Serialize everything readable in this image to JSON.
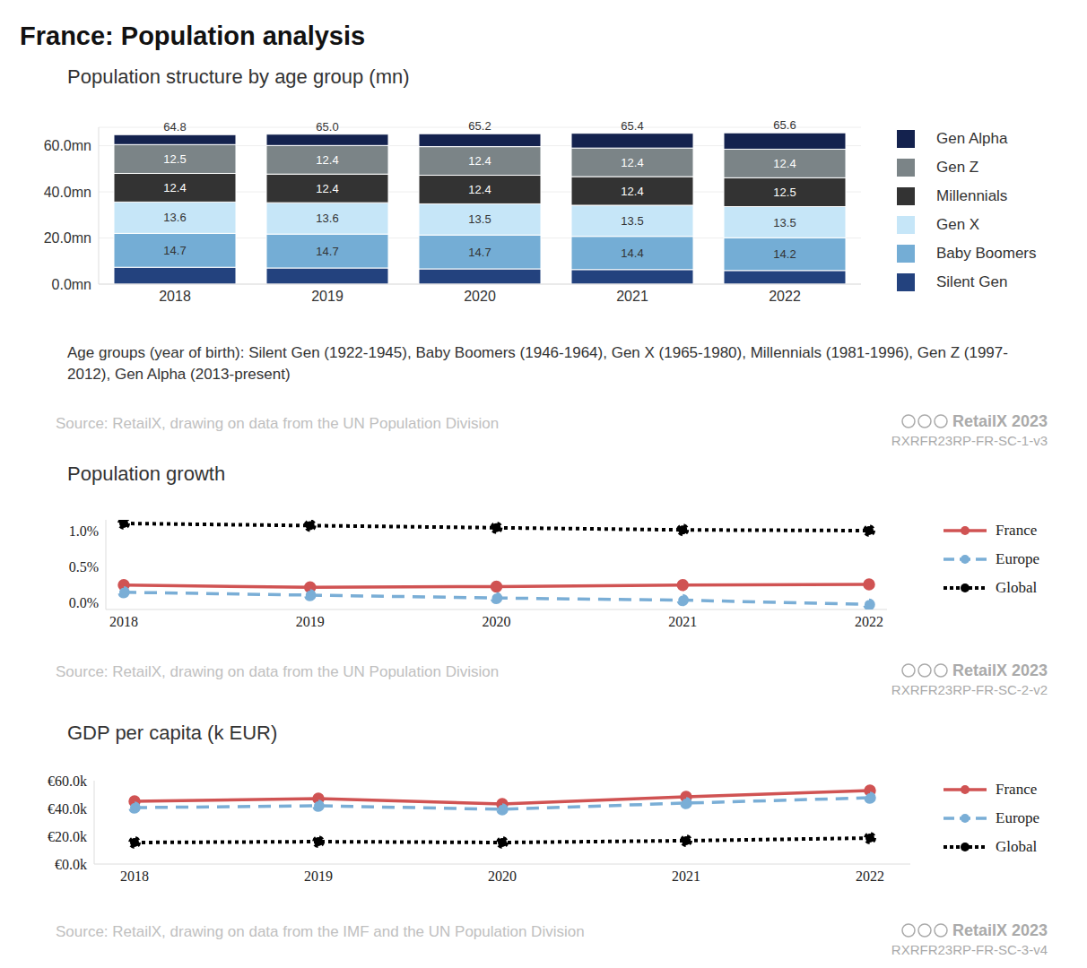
{
  "title": "France: Population analysis",
  "chart_data": [
    {
      "type": "bar",
      "title": "Population structure by age group (mn)",
      "note": "Age groups (year of birth): Silent Gen (1922-1945), Baby Boomers (1946-1964), Gen X (1965-1980), Millennials (1981-1996), Gen Z (1997-2012), Gen Alpha (2013-present)",
      "source": "Source: RetailX, drawing on data from the UN Population Division",
      "credit": "RetailX 2023",
      "code": "RXRFR23RP-FR-SC-1-v3",
      "categories": [
        "2018",
        "2019",
        "2020",
        "2021",
        "2022"
      ],
      "stacked": true,
      "grid": true,
      "legend": "right",
      "series": [
        {
          "name": "Silent Gen",
          "color": "#23427e",
          "data_labels": false,
          "values": [
            7.3,
            7.0,
            6.6,
            6.3,
            5.9
          ]
        },
        {
          "name": "Baby Boomers",
          "color": "#74add5",
          "data_labels": true,
          "values": [
            14.7,
            14.7,
            14.7,
            14.4,
            14.2
          ]
        },
        {
          "name": "Gen X",
          "color": "#c6e6f8",
          "data_labels": true,
          "values": [
            13.6,
            13.6,
            13.5,
            13.5,
            13.5
          ]
        },
        {
          "name": "Millennials",
          "color": "#333333",
          "data_labels": true,
          "values": [
            12.4,
            12.4,
            12.4,
            12.4,
            12.5
          ]
        },
        {
          "name": "Gen Z",
          "color": "#7b8487",
          "data_labels": true,
          "values": [
            12.5,
            12.4,
            12.4,
            12.4,
            12.4
          ]
        },
        {
          "name": "Gen Alpha",
          "color": "#14224e",
          "data_labels": false,
          "values": [
            4.3,
            4.9,
            5.6,
            6.4,
            7.1
          ]
        }
      ],
      "totals": [
        64.8,
        65.0,
        65.2,
        65.4,
        65.6
      ],
      "total_labels": [
        "64.8",
        "65.0",
        "65.2",
        "65.4",
        "65.6"
      ],
      "ylim": [
        0,
        68
      ],
      "yticks": [
        {
          "value": 0,
          "label": "0.0mn"
        },
        {
          "value": 20,
          "label": "20.0mn"
        },
        {
          "value": 40,
          "label": "40.0mn"
        },
        {
          "value": 60,
          "label": "60.0mn"
        }
      ]
    },
    {
      "type": "line",
      "title": "Population growth",
      "source": "Source: RetailX, drawing on data from the UN Population Division",
      "credit": "RetailX 2023",
      "code": "RXRFR23RP-FR-SC-2-v2",
      "categories": [
        "2018",
        "2019",
        "2020",
        "2021",
        "2022"
      ],
      "grid": false,
      "legend": "right",
      "series": [
        {
          "name": "France",
          "color": "#d05353",
          "line_style": "solid",
          "marker": "circle",
          "values": [
            0.24,
            0.21,
            0.22,
            0.24,
            0.25
          ]
        },
        {
          "name": "Europe",
          "color": "#7aaed6",
          "line_style": "dashed",
          "marker": "circle",
          "values": [
            0.14,
            0.1,
            0.06,
            0.03,
            -0.03
          ]
        },
        {
          "name": "Global",
          "color": "#000000",
          "line_style": "dotted",
          "marker": "circle",
          "values": [
            1.1,
            1.07,
            1.04,
            1.01,
            1.0
          ]
        }
      ],
      "ylim": [
        -0.1,
        1.15
      ],
      "yticks": [
        {
          "value": 0,
          "label": "0.0%"
        },
        {
          "value": 0.5,
          "label": "0.5%"
        },
        {
          "value": 1,
          "label": "1.0%"
        }
      ]
    },
    {
      "type": "line",
      "title": "GDP per capita (k EUR)",
      "source": "Source: RetailX, drawing on data from the IMF and the UN Population Division",
      "credit": "RetailX 2023",
      "code": "RXRFR23RP-FR-SC-3-v4",
      "categories": [
        "2018",
        "2019",
        "2020",
        "2021",
        "2022"
      ],
      "grid": false,
      "legend": "right",
      "series": [
        {
          "name": "France",
          "color": "#d05353",
          "line_style": "solid",
          "marker": "circle",
          "values": [
            45.2,
            47.1,
            43.2,
            48.4,
            52.9
          ]
        },
        {
          "name": "Europe",
          "color": "#7aaed6",
          "line_style": "dashed",
          "marker": "circle",
          "values": [
            40.6,
            41.9,
            39.4,
            43.9,
            47.7
          ]
        },
        {
          "name": "Global",
          "color": "#000000",
          "line_style": "dotted",
          "marker": "circle",
          "values": [
            15.5,
            16.1,
            15.5,
            16.8,
            18.7
          ]
        }
      ],
      "ylim": [
        0,
        60
      ],
      "yticks": [
        {
          "value": 0,
          "label": "€0.0k"
        },
        {
          "value": 20,
          "label": "€20.0k"
        },
        {
          "value": 40,
          "label": "€40.0k"
        },
        {
          "value": 60,
          "label": "€60.0k"
        }
      ]
    }
  ]
}
